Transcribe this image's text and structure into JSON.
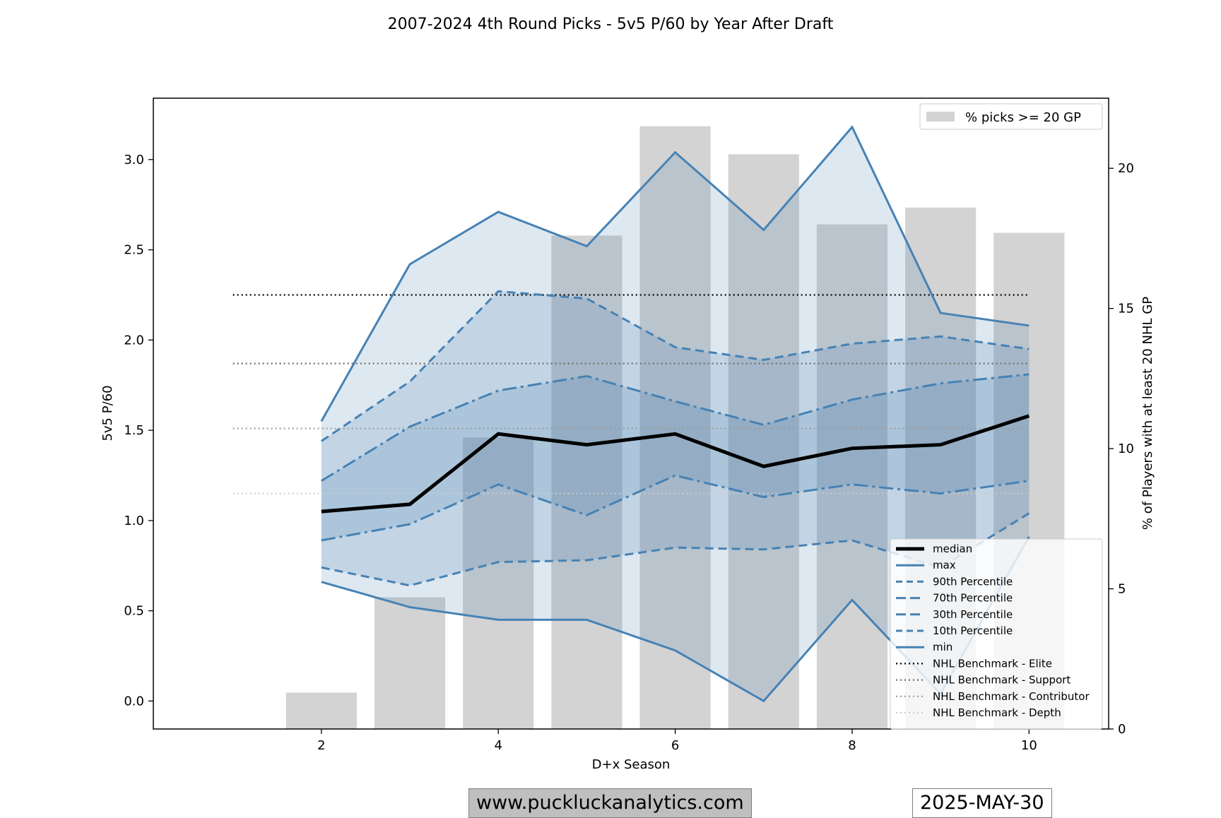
{
  "chart_data": {
    "type": "line",
    "title": "2007-2024 4th Round Picks - 5v5 P/60 by Year After Draft",
    "xlabel": "D+x Season",
    "ylabel": "5v5 P/60",
    "y2label": "% of Players with at least 20 NHL GP",
    "xlim": [
      0.1,
      10.9
    ],
    "ylim": [
      -0.155,
      3.34
    ],
    "y2lim": [
      0,
      22.5
    ],
    "xticks": [
      2,
      4,
      6,
      8,
      10
    ],
    "yticks": [
      0.0,
      0.5,
      1.0,
      1.5,
      2.0,
      2.5,
      3.0
    ],
    "y2ticks": [
      0,
      5,
      10,
      15,
      20
    ],
    "x": [
      2,
      3,
      4,
      5,
      6,
      7,
      8,
      9,
      10
    ],
    "bars": {
      "name": "% picks >= 20 GP",
      "color": "#d3d3d3",
      "values": [
        1.3,
        4.7,
        10.4,
        17.6,
        21.5,
        20.5,
        18.0,
        18.6,
        17.7
      ]
    },
    "series": [
      {
        "name": "median",
        "key": "median",
        "values": [
          1.05,
          1.09,
          1.48,
          1.42,
          1.48,
          1.3,
          1.4,
          1.42,
          1.58
        ]
      },
      {
        "name": "max",
        "key": "max",
        "values": [
          1.55,
          2.42,
          2.71,
          2.52,
          3.04,
          2.61,
          3.18,
          2.15,
          2.08
        ]
      },
      {
        "name": "90th Percentile",
        "key": "p90",
        "values": [
          1.44,
          1.77,
          2.27,
          2.23,
          1.96,
          1.89,
          1.98,
          2.02,
          1.95
        ]
      },
      {
        "name": "70th Percentile",
        "key": "p70",
        "values": [
          1.22,
          1.52,
          1.72,
          1.8,
          1.66,
          1.53,
          1.67,
          1.76,
          1.81
        ]
      },
      {
        "name": "30th Percentile",
        "key": "p30",
        "values": [
          0.89,
          0.98,
          1.2,
          1.03,
          1.25,
          1.13,
          1.2,
          1.15,
          1.22
        ]
      },
      {
        "name": "10th Percentile",
        "key": "p10",
        "values": [
          0.74,
          0.64,
          0.77,
          0.78,
          0.85,
          0.84,
          0.89,
          0.74,
          1.04
        ]
      },
      {
        "name": "min",
        "key": "min",
        "values": [
          0.66,
          0.52,
          0.45,
          0.45,
          0.28,
          0.0,
          0.56,
          0.04,
          0.91
        ]
      }
    ],
    "benchmarks": [
      {
        "name": "NHL Benchmark - Elite",
        "value": 2.25,
        "color": "#000000"
      },
      {
        "name": "NHL Benchmark - Support",
        "value": 1.87,
        "color": "#6e6e6e"
      },
      {
        "name": "NHL Benchmark - Contributor",
        "value": 1.51,
        "color": "#9a9a9a"
      },
      {
        "name": "NHL Benchmark - Depth",
        "value": 1.15,
        "color": "#cccccc"
      }
    ],
    "benchmark_xrange": [
      1,
      10
    ],
    "line_color": "#4682b4",
    "median_color": "#000000",
    "legend_placement": "lower-right",
    "bar_legend_placement": "upper-right",
    "grid": false
  },
  "footer": {
    "website": "www.puckluckanalytics.com",
    "date": "2025-MAY-30"
  }
}
